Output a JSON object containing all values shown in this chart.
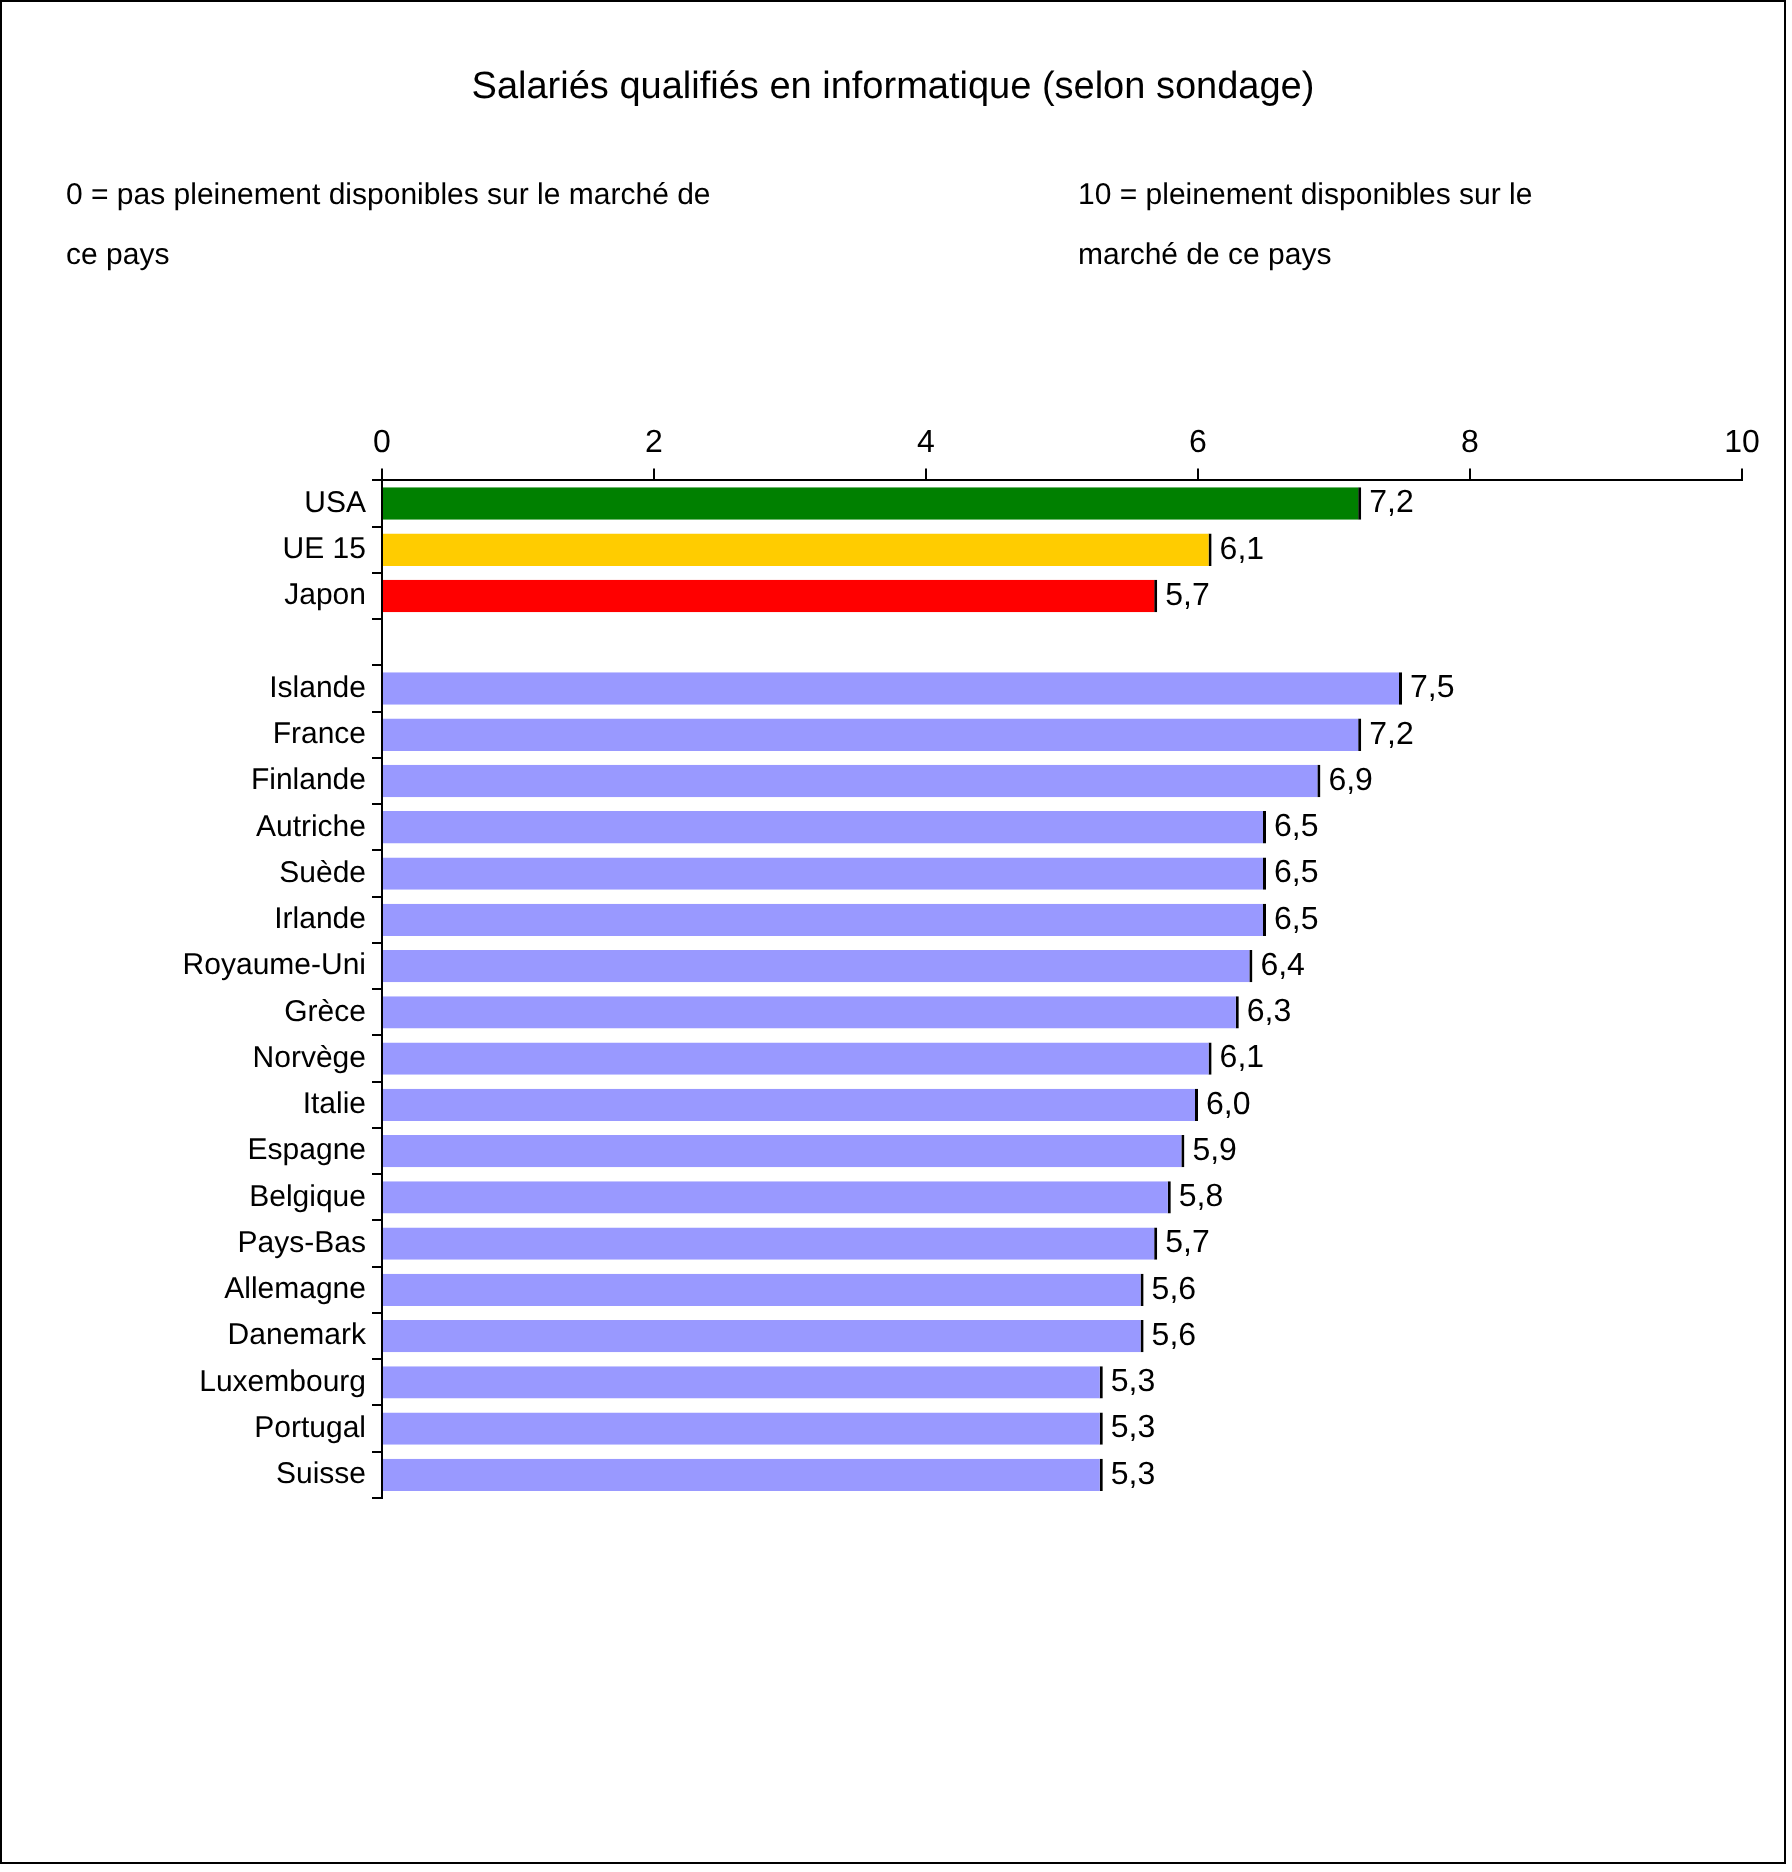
{
  "chart_data": {
    "type": "bar",
    "orientation": "horizontal",
    "title": "Salariés qualifiés en informatique (selon sondage)",
    "annotations": [
      "0 = pas pleinement disponibles sur le marché de ce pays",
      "10 = pleinement disponibles sur le marché de ce pays"
    ],
    "categories": [
      "USA",
      "UE 15",
      "Japon",
      null,
      "Islande",
      "France",
      "Finlande",
      "Autriche",
      "Suède",
      "Irlande",
      "Royaume-Uni",
      "Grèce",
      "Norvège",
      "Italie",
      "Espagne",
      "Belgique",
      "Pays-Bas",
      "Allemagne",
      "Danemark",
      "Luxembourg",
      "Portugal",
      "Suisse"
    ],
    "values": [
      7.2,
      6.1,
      5.7,
      null,
      7.5,
      7.2,
      6.9,
      6.5,
      6.5,
      6.5,
      6.4,
      6.3,
      6.1,
      6.0,
      5.9,
      5.8,
      5.7,
      5.6,
      5.6,
      5.3,
      5.3,
      5.3
    ],
    "value_labels": [
      "7,2",
      "6,1",
      "5,7",
      null,
      "7,5",
      "7,2",
      "6,9",
      "6,5",
      "6,5",
      "6,5",
      "6,4",
      "6,3",
      "6,1",
      "6,0",
      "5,9",
      "5,8",
      "5,7",
      "5,6",
      "5,6",
      "5,3",
      "5,3",
      "5,3"
    ],
    "colors": [
      "#008000",
      "#ffcc00",
      "#ff0000",
      "#9999ff",
      "#9999ff",
      "#9999ff",
      "#9999ff",
      "#9999ff",
      "#9999ff",
      "#9999ff",
      "#9999ff",
      "#9999ff",
      "#9999ff",
      "#9999ff",
      "#9999ff",
      "#9999ff",
      "#9999ff",
      "#9999ff",
      "#9999ff",
      "#9999ff",
      "#9999ff",
      "#9999ff"
    ],
    "xlim": [
      0,
      10
    ],
    "xticks": [
      0,
      2,
      4,
      6,
      8,
      10
    ],
    "grid": false
  }
}
